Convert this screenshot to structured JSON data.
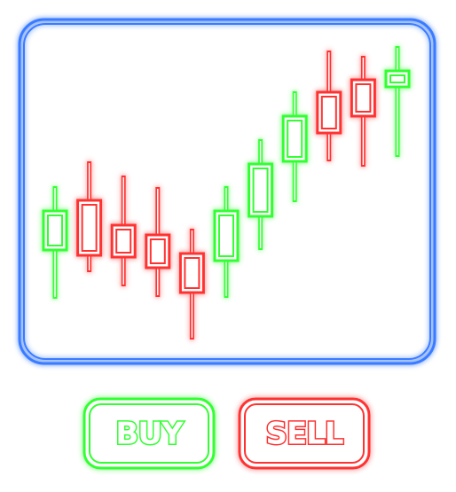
{
  "chart_data": {
    "type": "candlestick",
    "open": [
      118,
      174,
      146,
      135,
      114,
      106,
      156,
      218,
      296,
      310,
      302
    ],
    "high": [
      190,
      218,
      202,
      189,
      142,
      190,
      243,
      297,
      343,
      337,
      348
    ],
    "low": [
      63,
      93,
      77,
      65,
      17,
      64,
      118,
      172,
      218,
      212,
      223
    ],
    "close": [
      162,
      112,
      110,
      98,
      70,
      162,
      215,
      269,
      250,
      269,
      320
    ],
    "up_color": "#33ff33",
    "down_color": "#ff3333",
    "frame_color": "#3a7bff",
    "ylim": [
      0,
      360
    ]
  },
  "buttons": [
    {
      "label": "BUY",
      "color": "#33ff33"
    },
    {
      "label": "SELL",
      "color": "#ff3333"
    }
  ]
}
